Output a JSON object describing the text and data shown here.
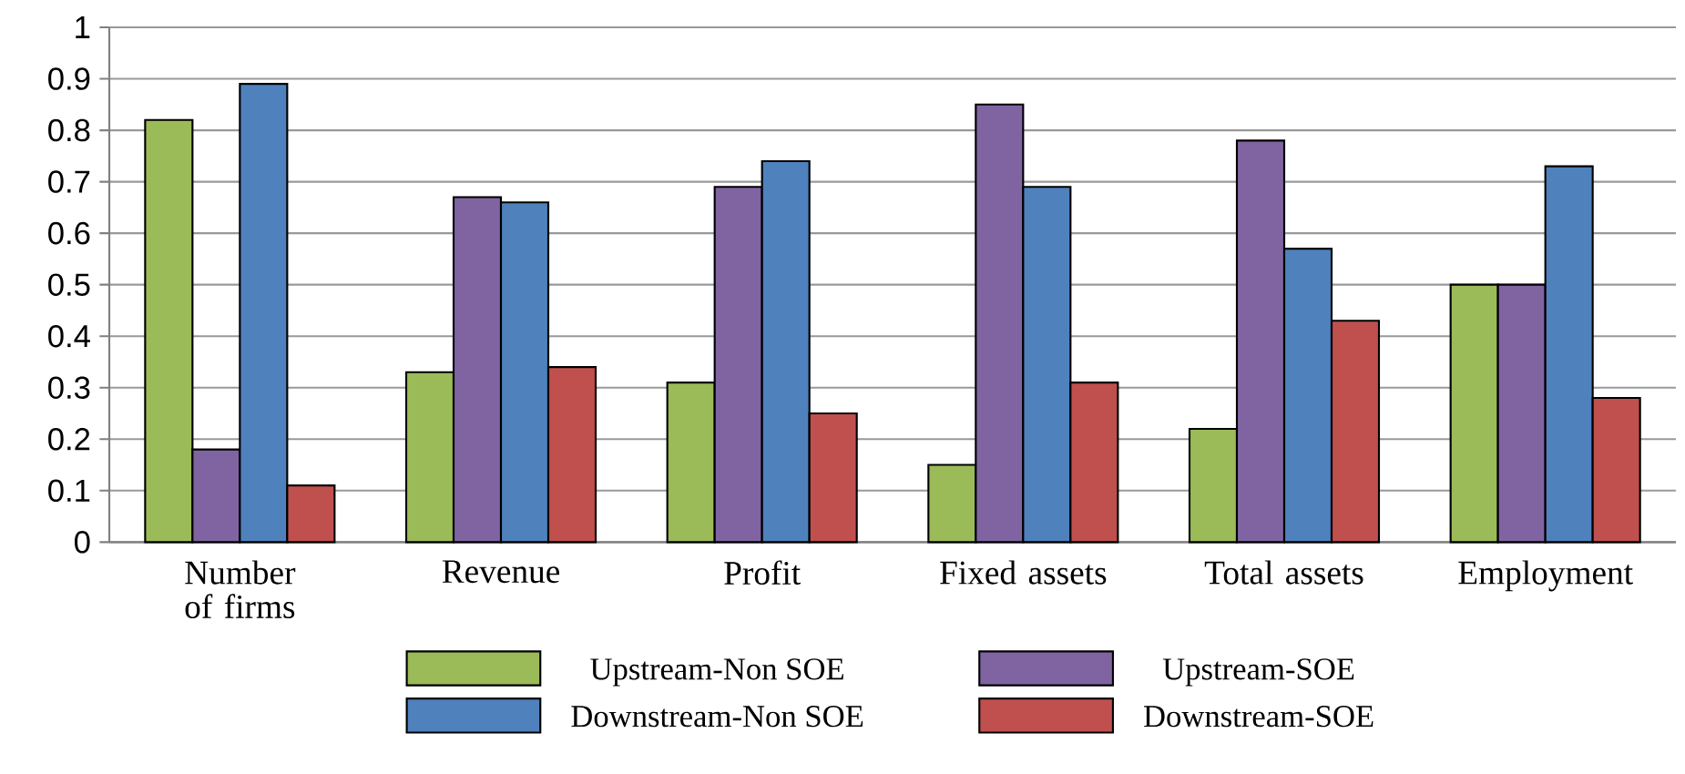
{
  "chart_data": {
    "type": "bar",
    "categories": [
      "Number of firms",
      "Revenue",
      "Profit",
      "Fixed assets",
      "Total assets",
      "Employment"
    ],
    "series": [
      {
        "name": "Upstream-Non SOE",
        "color": "#9bbb59",
        "values": [
          0.82,
          0.33,
          0.31,
          0.15,
          0.22,
          0.5
        ]
      },
      {
        "name": "Upstream-SOE",
        "color": "#8064a2",
        "values": [
          0.18,
          0.67,
          0.69,
          0.85,
          0.78,
          0.5
        ]
      },
      {
        "name": "Downstream-Non SOE",
        "color": "#4f81bd",
        "values": [
          0.89,
          0.66,
          0.74,
          0.69,
          0.57,
          0.73
        ]
      },
      {
        "name": "Downstream-SOE",
        "color": "#c0504d",
        "values": [
          0.11,
          0.34,
          0.25,
          0.31,
          0.43,
          0.28
        ]
      }
    ],
    "ylim": [
      0,
      1
    ],
    "yticks": [
      0,
      0.1,
      0.2,
      0.3,
      0.4,
      0.5,
      0.6,
      0.7,
      0.8,
      0.9,
      1
    ],
    "grid": "y",
    "legend": "bottom"
  }
}
